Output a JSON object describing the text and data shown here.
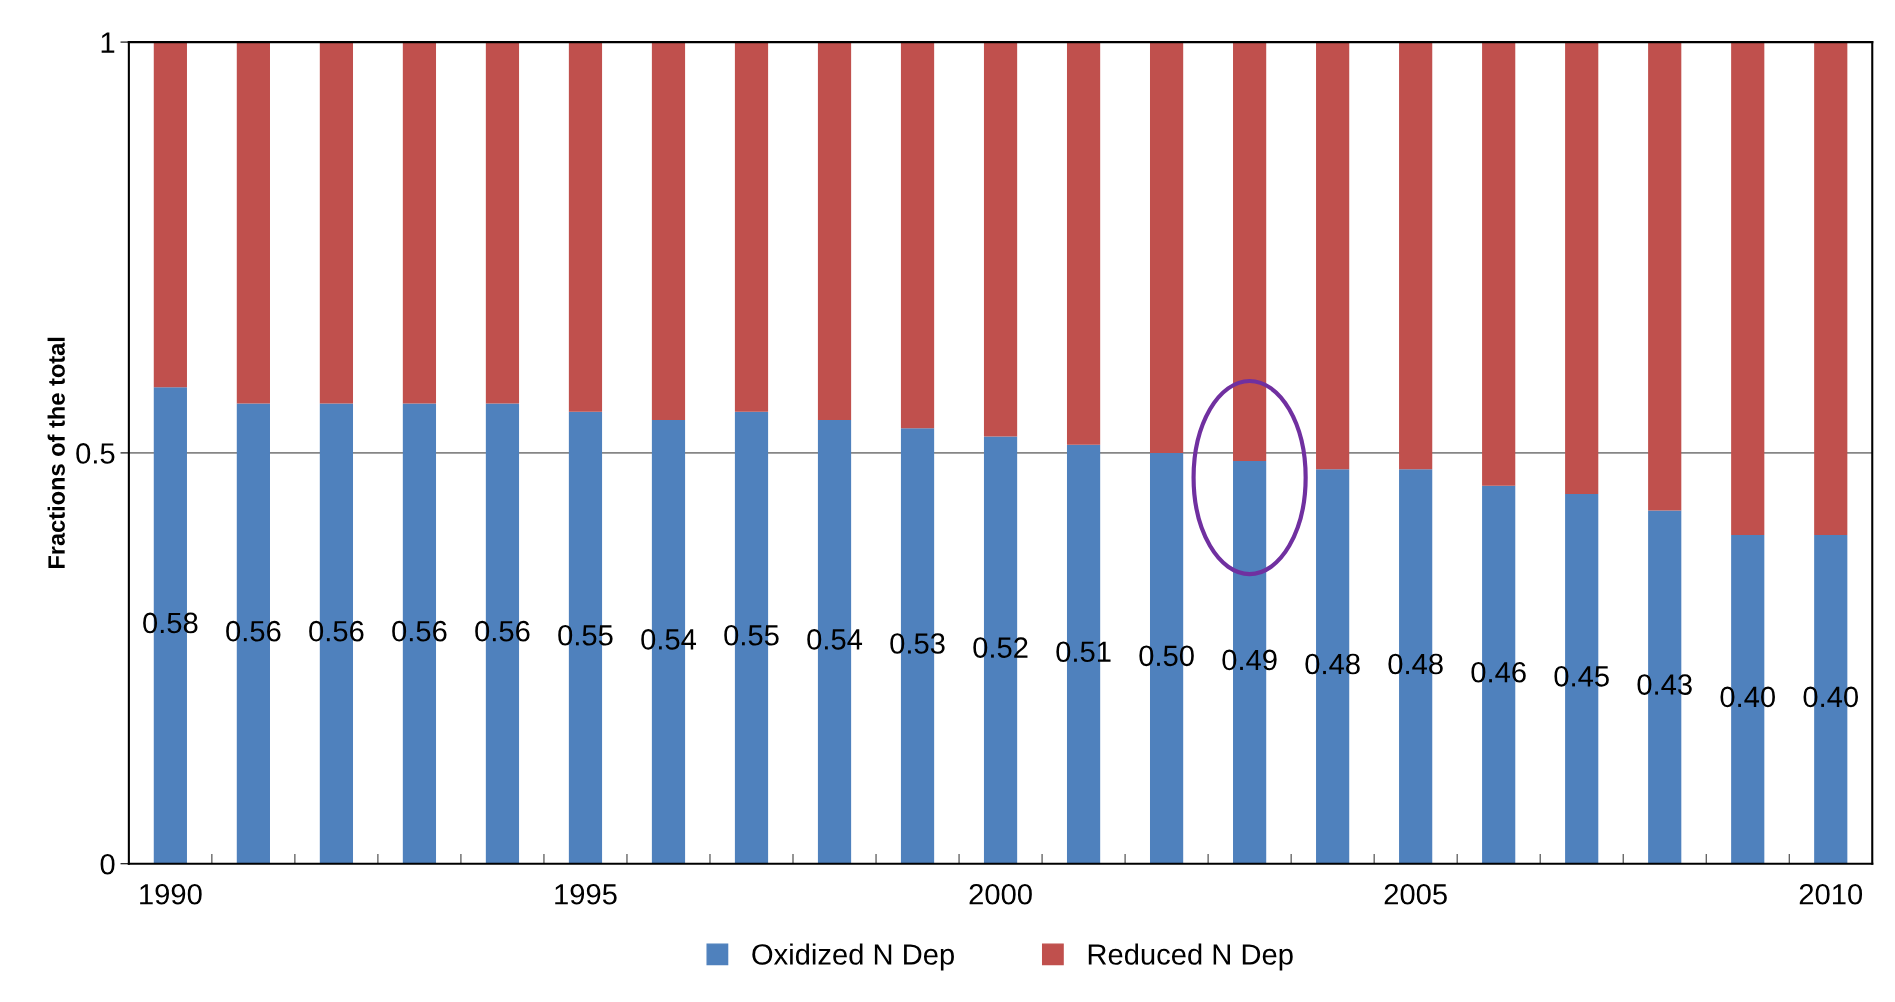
{
  "chart_data": {
    "type": "bar",
    "stacked": true,
    "ylabel": "Fractions of the total",
    "categories": [
      "1990",
      null,
      null,
      null,
      null,
      "1995",
      null,
      null,
      null,
      null,
      "2000",
      null,
      null,
      null,
      null,
      "2005",
      null,
      null,
      null,
      null,
      "2010"
    ],
    "series": [
      {
        "name": "Oxidized N Dep",
        "color": "#4f81bd",
        "values": [
          0.58,
          0.56,
          0.56,
          0.56,
          0.56,
          0.55,
          0.54,
          0.55,
          0.54,
          0.53,
          0.52,
          0.51,
          0.5,
          0.49,
          0.48,
          0.48,
          0.46,
          0.45,
          0.43,
          0.4,
          0.4
        ],
        "value_labels": [
          "0.58",
          "0.56",
          "0.56",
          "0.56",
          "0.56",
          "0.55",
          "0.54",
          "0.55",
          "0.54",
          "0.53",
          "0.52",
          "0.51",
          "0.50",
          "0.49",
          "0.48",
          "0.48",
          "0.46",
          "0.45",
          "0.43",
          "0.40",
          "0.40"
        ]
      },
      {
        "name": "Reduced N Dep",
        "color": "#c0504d",
        "values": [
          0.42,
          0.44,
          0.44,
          0.44,
          0.44,
          0.45,
          0.46,
          0.45,
          0.46,
          0.47,
          0.48,
          0.49,
          0.5,
          0.51,
          0.52,
          0.52,
          0.54,
          0.55,
          0.57,
          0.6,
          0.6
        ]
      }
    ],
    "ylim": [
      0,
      1
    ],
    "yticks": [
      0,
      0.5,
      1
    ],
    "grid": "y",
    "legend": "bottom"
  }
}
